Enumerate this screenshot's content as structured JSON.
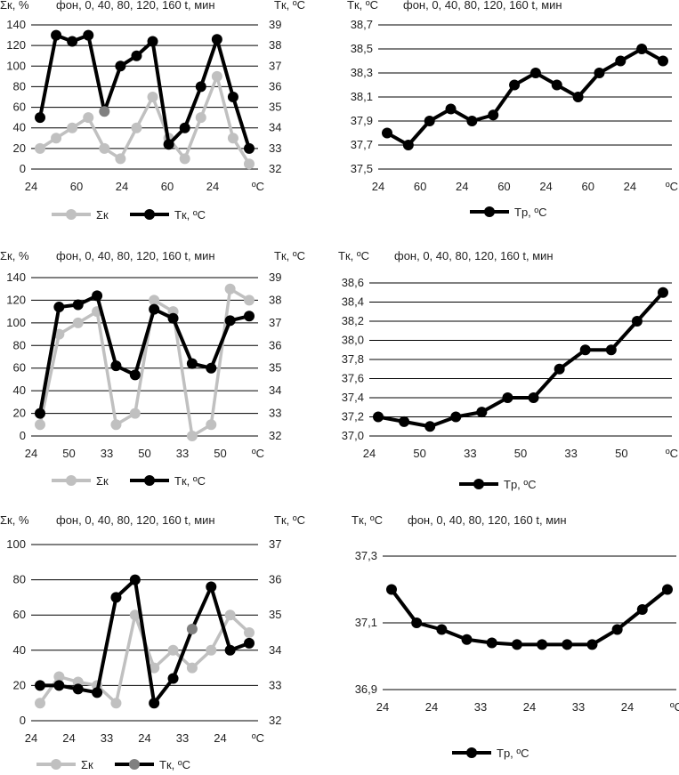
{
  "colors": {
    "ink": "#000000",
    "grey": "#c0c0c0",
    "marker_grey": "#808080",
    "grid": "#000000",
    "text": "#222222"
  },
  "chart_data": [
    {
      "id": "row1-left",
      "type": "line",
      "title": "фон, 0, 40, 80, 120, 160 t, мин",
      "left_axis_label": "Σк, %",
      "right_axis_label": "Tк, ºC",
      "x_tick_labels": [
        "24",
        "60",
        "24",
        "60",
        "24",
        "ºC"
      ],
      "left_ylim": [
        0,
        140
      ],
      "left_yticks": [
        0,
        20,
        40,
        60,
        80,
        100,
        120,
        140
      ],
      "left_ytick_labels": [
        "0",
        "20",
        "40",
        "60",
        "80",
        "100",
        "120",
        "140"
      ],
      "right_ylim": [
        32,
        39
      ],
      "right_yticks": [
        32,
        33,
        34,
        35,
        36,
        37,
        38,
        39
      ],
      "right_ytick_labels": [
        "32",
        "33",
        "34",
        "35",
        "36",
        "37",
        "38",
        "39"
      ],
      "series": [
        {
          "name": "Σк",
          "axis": "left",
          "color": "#c0c0c0",
          "values": [
            20,
            30,
            40,
            50,
            20,
            10,
            40,
            70,
            30,
            10,
            50,
            90,
            30,
            5
          ]
        },
        {
          "name": "Tк, ºC",
          "axis": "right",
          "color": "#000000",
          "values": [
            34.5,
            38.5,
            38.2,
            38.5,
            34.8,
            37,
            37.5,
            38.2,
            33.2,
            34,
            36,
            38.3,
            35.5,
            33
          ]
        }
      ],
      "highlight_points": [
        {
          "series": 1,
          "index": 4,
          "color": "#808080"
        }
      ],
      "legend": [
        "Σк",
        "Tк, ºC"
      ]
    },
    {
      "id": "row1-right",
      "type": "line",
      "title": "фон, 0, 40, 80, 120, 160 t, мин",
      "left_axis_label": "Tк, ºC",
      "right_axis_label": "",
      "x_tick_labels": [
        "24",
        "60",
        "24",
        "60",
        "24",
        "60",
        "24",
        "ºC"
      ],
      "left_ylim": [
        37.5,
        38.7
      ],
      "left_yticks": [
        37.5,
        37.7,
        37.9,
        38.1,
        38.3,
        38.5,
        38.7
      ],
      "left_ytick_labels": [
        "37,5",
        "37,7",
        "37,9",
        "38,1",
        "38,3",
        "38,5",
        "38,7"
      ],
      "series": [
        {
          "name": "Tр, ºC",
          "axis": "left",
          "color": "#000000",
          "values": [
            37.8,
            37.7,
            37.9,
            38.0,
            37.9,
            37.95,
            38.2,
            38.3,
            38.2,
            38.1,
            38.3,
            38.4,
            38.5,
            38.4
          ]
        }
      ],
      "legend": [
        "Tр, ºC"
      ]
    },
    {
      "id": "row2-left",
      "type": "line",
      "title": "фон, 0, 40, 80, 120, 160 t, мин",
      "left_axis_label": "Σк, %",
      "right_axis_label": "Tк, ºC",
      "x_tick_labels": [
        "24",
        "50",
        "33",
        "50",
        "33",
        "50",
        "ºC"
      ],
      "left_ylim": [
        0,
        140
      ],
      "left_yticks": [
        0,
        20,
        40,
        60,
        80,
        100,
        120,
        140
      ],
      "left_ytick_labels": [
        "0",
        "20",
        "40",
        "60",
        "80",
        "100",
        "120",
        "140"
      ],
      "right_ylim": [
        32,
        39
      ],
      "right_yticks": [
        32,
        33,
        34,
        35,
        36,
        37,
        38,
        39
      ],
      "right_ytick_labels": [
        "32",
        "33",
        "34",
        "35",
        "36",
        "37",
        "38",
        "39"
      ],
      "series": [
        {
          "name": "Σк",
          "axis": "left",
          "color": "#c0c0c0",
          "values": [
            10,
            90,
            100,
            110,
            10,
            20,
            120,
            110,
            0,
            10,
            130,
            120
          ]
        },
        {
          "name": "Tк, ºC",
          "axis": "right",
          "color": "#000000",
          "values": [
            33,
            37.7,
            37.8,
            38.2,
            35.1,
            34.7,
            37.6,
            37.2,
            35.2,
            35.0,
            37.1,
            37.3
          ]
        }
      ],
      "legend": [
        "Σк",
        "Tк, ºC"
      ]
    },
    {
      "id": "row2-right",
      "type": "line",
      "title": "фон, 0, 40, 80, 120, 160 t, мин",
      "left_axis_label": "Tк, ºC",
      "right_axis_label": "",
      "x_tick_labels": [
        "24",
        "50",
        "33",
        "50",
        "33",
        "50",
        "ºC"
      ],
      "left_ylim": [
        37.0,
        38.6
      ],
      "left_yticks": [
        37.0,
        37.2,
        37.4,
        37.6,
        37.8,
        38.0,
        38.2,
        38.4,
        38.6
      ],
      "left_ytick_labels": [
        "37,0",
        "37,2",
        "37,4",
        "37,6",
        "37,8",
        "38,0",
        "38,2",
        "38,4",
        "38,6"
      ],
      "series": [
        {
          "name": "Tр, ºC",
          "axis": "left",
          "color": "#000000",
          "values": [
            37.2,
            37.15,
            37.1,
            37.2,
            37.25,
            37.4,
            37.4,
            37.7,
            37.9,
            37.9,
            38.2,
            38.5
          ]
        }
      ],
      "legend": [
        "Tр, ºC"
      ]
    },
    {
      "id": "row3-left",
      "type": "line",
      "title": "фон, 0, 40, 80, 120, 160 t, мин",
      "left_axis_label": "Σк, %",
      "right_axis_label": "Tк, ºC",
      "x_tick_labels": [
        "24",
        "24",
        "33",
        "24",
        "33",
        "24",
        "ºC"
      ],
      "left_ylim": [
        0,
        100
      ],
      "left_yticks": [
        0,
        20,
        40,
        60,
        80,
        100
      ],
      "left_ytick_labels": [
        "0",
        "20",
        "40",
        "60",
        "80",
        "100"
      ],
      "right_ylim": [
        32,
        37
      ],
      "right_yticks": [
        32,
        33,
        34,
        35,
        36,
        37
      ],
      "right_ytick_labels": [
        "32",
        "33",
        "34",
        "35",
        "36",
        "37"
      ],
      "series": [
        {
          "name": "Σк",
          "axis": "left",
          "color": "#c0c0c0",
          "values": [
            10,
            25,
            22,
            20,
            10,
            60,
            30,
            40,
            30,
            40,
            60,
            50
          ]
        },
        {
          "name": "Tк, ºC",
          "axis": "right",
          "color": "#000000",
          "values": [
            33,
            33,
            32.9,
            32.8,
            35.5,
            36,
            32.5,
            33.2,
            34.6,
            35.8,
            34,
            34.2
          ]
        }
      ],
      "highlight_points": [
        {
          "series": 1,
          "index": 8,
          "color": "#808080"
        }
      ],
      "legend": [
        "Σк",
        "Tк, ºC"
      ],
      "legend_marker_colors": [
        "#c0c0c0",
        "#808080"
      ]
    },
    {
      "id": "row3-right",
      "type": "line",
      "title": "фон, 0, 40, 80, 120, 160 t, мин",
      "left_axis_label": "Tк, ºC",
      "right_axis_label": "",
      "x_tick_labels": [
        "24",
        "24",
        "33",
        "24",
        "33",
        "24",
        "ºC"
      ],
      "left_ylim": [
        36.9,
        37.3
      ],
      "left_yticks": [
        36.9,
        37.1,
        37.3
      ],
      "left_ytick_labels": [
        "36,9",
        "37,1",
        "37,3"
      ],
      "series": [
        {
          "name": "Tр, ºC",
          "axis": "left",
          "color": "#000000",
          "values": [
            37.2,
            37.1,
            37.08,
            37.05,
            37.04,
            37.035,
            37.035,
            37.035,
            37.035,
            37.08,
            37.14,
            37.2
          ]
        }
      ],
      "legend": [
        "Tр, ºC"
      ]
    }
  ]
}
